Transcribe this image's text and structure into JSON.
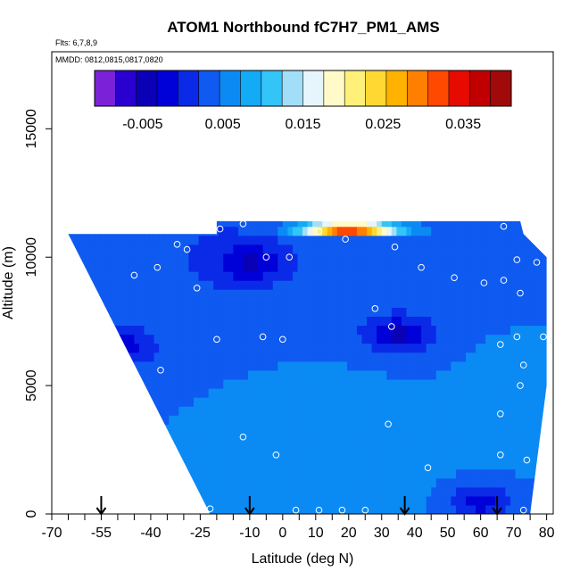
{
  "chart_data": {
    "type": "heatmap",
    "title": "ATOM1 Northbound fC7H7_PM1_AMS",
    "flights_label": "Flts: 6,7,8,9",
    "dates_label": "MMDD: 0812,0815,0817,0820",
    "xlabel": "Latitude (deg N)",
    "ylabel": "Altitude (m)",
    "xlim": [
      -70,
      82
    ],
    "ylim": [
      0,
      18000
    ],
    "x_tick_labels": [
      "-70",
      "-55",
      "-40",
      "-25",
      "-10",
      "0",
      "10",
      "20",
      "30",
      "40",
      "50",
      "60",
      "70",
      "80"
    ],
    "x_tick_values": [
      -70,
      -55,
      -40,
      -25,
      -10,
      0,
      10,
      20,
      30,
      40,
      50,
      60,
      70,
      80
    ],
    "x_minor_ticks": [
      -65,
      -60,
      -50,
      -45,
      -35,
      -30,
      -20,
      -15,
      -5,
      5,
      15,
      25,
      35,
      45,
      55,
      65,
      75
    ],
    "y_tick_labels": [
      "0",
      "5000",
      "10000",
      "15000"
    ],
    "y_tick_values": [
      0,
      5000,
      10000,
      15000
    ],
    "colorbar": {
      "range": [
        -0.011,
        0.041
      ],
      "tick_labels": [
        "-0.005",
        "0.005",
        "0.015",
        "0.025",
        "0.035"
      ],
      "tick_values": [
        -0.005,
        0.005,
        0.015,
        0.025,
        0.035
      ],
      "colors": [
        "#7b22d8",
        "#2a00d0",
        "#0a00b6",
        "#0000d8",
        "#0a2ae8",
        "#0f5af0",
        "#0b8af4",
        "#13aaf6",
        "#33c4f8",
        "#a2def8",
        "#e6f5fb",
        "#fffac8",
        "#fff07a",
        "#ffd832",
        "#ffb300",
        "#ff8000",
        "#ff4800",
        "#e60a00",
        "#c00000",
        "#a10a0a"
      ]
    },
    "series": [
      {
        "name": "fC7H7_PM1_AMS concentration curtain",
        "coverage_top_altitude": [
          {
            "lat": -65,
            "alt": 10900
          },
          {
            "lat": -20,
            "alt": 10900
          },
          {
            "lat": -20,
            "alt": 11400
          },
          {
            "lat": 72,
            "alt": 11400
          },
          {
            "lat": 73,
            "alt": 10900
          },
          {
            "lat": 80,
            "alt": 10000
          }
        ],
        "coverage_bottom_altitude": [
          {
            "lat": -65,
            "alt": 10900
          },
          {
            "lat": -22,
            "alt": 0
          },
          {
            "lat": 75,
            "alt": 0
          },
          {
            "lat": 80,
            "alt": 5000
          }
        ],
        "fields": [
          {
            "lat": -20,
            "alt": 10500,
            "value": 0.002
          },
          {
            "lat": 10,
            "alt": 3000,
            "value": 0.006
          },
          {
            "lat": 40,
            "alt": 9500,
            "value": 0.003
          },
          {
            "lat": 70,
            "alt": 5500,
            "value": 0.005
          }
        ],
        "features": [
          {
            "lat": 20,
            "alt": 11150,
            "value": 0.04,
            "desc": "top row maximum"
          },
          {
            "lat": 35,
            "alt": 7000,
            "value": -0.004,
            "desc": "mid-latitude minimum"
          },
          {
            "lat": -50,
            "alt": 6500,
            "value": -0.003
          },
          {
            "lat": -10,
            "alt": 9800,
            "value": -0.004
          },
          {
            "lat": 60,
            "alt": 500,
            "value": -0.002
          }
        ]
      },
      {
        "name": "sample locations",
        "type": "scatter",
        "points": [
          {
            "lat": 67,
            "alt": 11200
          },
          {
            "lat": 19,
            "alt": 10700
          },
          {
            "lat": -12,
            "alt": 11300
          },
          {
            "lat": -19,
            "alt": 11100
          },
          {
            "lat": 11,
            "alt": 11000
          },
          {
            "lat": -32,
            "alt": 10500
          },
          {
            "lat": -29,
            "alt": 10300
          },
          {
            "lat": 34,
            "alt": 10400
          },
          {
            "lat": -5,
            "alt": 10000
          },
          {
            "lat": 2,
            "alt": 10000
          },
          {
            "lat": -38,
            "alt": 9600
          },
          {
            "lat": -45,
            "alt": 9300
          },
          {
            "lat": 42,
            "alt": 9600
          },
          {
            "lat": 52,
            "alt": 9200
          },
          {
            "lat": 61,
            "alt": 9000
          },
          {
            "lat": 67,
            "alt": 9100
          },
          {
            "lat": 71,
            "alt": 9900
          },
          {
            "lat": 77,
            "alt": 9800
          },
          {
            "lat": -26,
            "alt": 8800
          },
          {
            "lat": 72,
            "alt": 8600
          },
          {
            "lat": 28,
            "alt": 8000
          },
          {
            "lat": 33,
            "alt": 7300
          },
          {
            "lat": -20,
            "alt": 6800
          },
          {
            "lat": -6,
            "alt": 6900
          },
          {
            "lat": 0,
            "alt": 6800
          },
          {
            "lat": 66,
            "alt": 6600
          },
          {
            "lat": 71,
            "alt": 6900
          },
          {
            "lat": 79,
            "alt": 6900
          },
          {
            "lat": -52,
            "alt": 6400
          },
          {
            "lat": 73,
            "alt": 5800
          },
          {
            "lat": -37,
            "alt": 5600
          },
          {
            "lat": 72,
            "alt": 5000
          },
          {
            "lat": 66,
            "alt": 3900
          },
          {
            "lat": 32,
            "alt": 3500
          },
          {
            "lat": -12,
            "alt": 3000
          },
          {
            "lat": -2,
            "alt": 2300
          },
          {
            "lat": 66,
            "alt": 2300
          },
          {
            "lat": 74,
            "alt": 2100
          },
          {
            "lat": 44,
            "alt": 1800
          },
          {
            "lat": -22,
            "alt": 200
          },
          {
            "lat": 4,
            "alt": 150
          },
          {
            "lat": 11,
            "alt": 150
          },
          {
            "lat": 18,
            "alt": 150
          },
          {
            "lat": 25,
            "alt": 150
          },
          {
            "lat": 73,
            "alt": 150
          }
        ]
      }
    ],
    "annotations": [
      {
        "type": "arrow",
        "lat": -55,
        "direction": "down",
        "desc": "profile marker"
      },
      {
        "type": "arrow",
        "lat": -10,
        "direction": "down",
        "desc": "profile marker"
      },
      {
        "type": "arrow",
        "lat": 37,
        "direction": "down",
        "desc": "profile marker"
      },
      {
        "type": "arrow",
        "lat": 65,
        "direction": "down",
        "desc": "profile marker"
      }
    ]
  }
}
